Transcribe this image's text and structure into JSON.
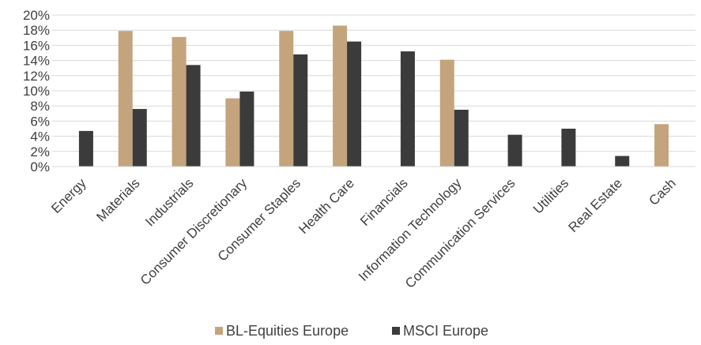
{
  "chart_data": {
    "type": "bar",
    "categories": [
      "Energy",
      "Materials",
      "Industrials",
      "Consumer Discretionary",
      "Consumer Staples",
      "Health Care",
      "Financials",
      "Information Technology",
      "Communication Services",
      "Utilities",
      "Real Estate",
      "Cash"
    ],
    "series": [
      {
        "name": "BL-Equities Europe",
        "color": "#c4a47c",
        "values": [
          0,
          17.9,
          17.1,
          9.0,
          17.9,
          18.6,
          0,
          14.1,
          0,
          0,
          0,
          5.6
        ]
      },
      {
        "name": "MSCI Europe",
        "color": "#3b3b3b",
        "values": [
          4.7,
          7.6,
          13.4,
          9.9,
          14.8,
          16.5,
          15.2,
          7.5,
          4.2,
          5.0,
          1.4,
          0
        ]
      }
    ],
    "ylim": [
      0,
      20
    ],
    "yticks": [
      0,
      2,
      4,
      6,
      8,
      10,
      12,
      14,
      16,
      18,
      20
    ],
    "ytick_labels": [
      "0%",
      "2%",
      "4%",
      "6%",
      "8%",
      "10%",
      "12%",
      "14%",
      "16%",
      "18%",
      "20%"
    ],
    "grid": true,
    "legend_position": "bottom"
  }
}
